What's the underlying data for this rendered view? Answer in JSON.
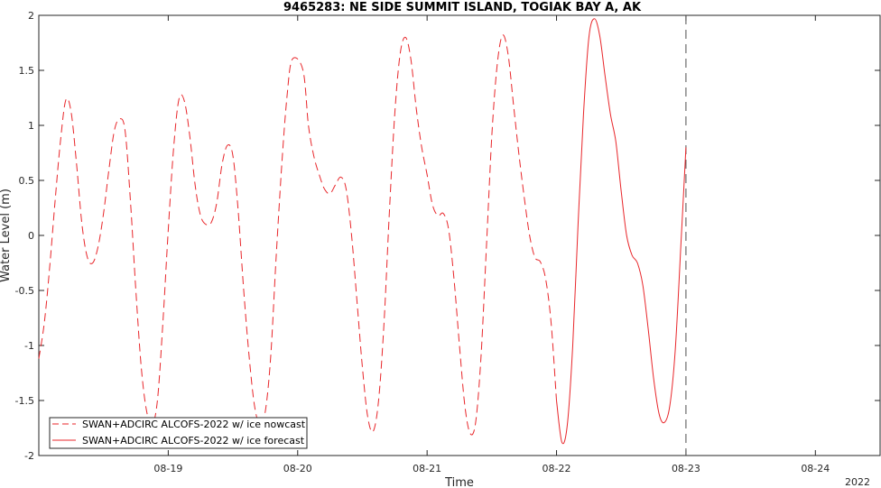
{
  "chart_data": {
    "type": "line",
    "title": "9465283: NE SIDE SUMMIT ISLAND, TOGIAK BAY A, AK",
    "xlabel": "Time",
    "ylabel": "Water Level (m)",
    "year_label": "2022",
    "xlim": [
      "2022-08-18 00:00",
      "2022-08-24 12:00"
    ],
    "ylim": [
      -2,
      2
    ],
    "x_ticks": [
      {
        "x": "2022-08-19 00:00",
        "label": "08-19"
      },
      {
        "x": "2022-08-20 00:00",
        "label": "08-20"
      },
      {
        "x": "2022-08-21 00:00",
        "label": "08-21"
      },
      {
        "x": "2022-08-22 00:00",
        "label": "08-22"
      },
      {
        "x": "2022-08-23 00:00",
        "label": "08-23"
      },
      {
        "x": "2022-08-24 00:00",
        "label": "08-24"
      }
    ],
    "y_ticks": [
      -2,
      -1.5,
      -1,
      -0.5,
      0,
      0.5,
      1,
      1.5,
      2
    ],
    "y_tick_labels": [
      "-2",
      "-1.5",
      "-1",
      "-0.5",
      "0",
      "0.5",
      "1",
      "1.5",
      "2"
    ],
    "nowcast_end": "2022-08-23 00:00",
    "grid": false,
    "legend_position": "bottom-left",
    "series": [
      {
        "name": "SWAN+ADCIRC ALCOFS-2022 w/ ice nowcast",
        "style": "dashed",
        "color": "#e8262a",
        "points": [
          [
            "2022-08-18 00:00",
            -1.12
          ],
          [
            "2022-08-18 01:00",
            -0.8
          ],
          [
            "2022-08-18 02:00",
            -0.3
          ],
          [
            "2022-08-18 03:00",
            0.3
          ],
          [
            "2022-08-18 04:00",
            0.85
          ],
          [
            "2022-08-18 05:00",
            1.23
          ],
          [
            "2022-08-18 06:00",
            1.12
          ],
          [
            "2022-08-18 07:00",
            0.65
          ],
          [
            "2022-08-18 08:00",
            0.1
          ],
          [
            "2022-08-18 09:00",
            -0.2
          ],
          [
            "2022-08-18 10:00",
            -0.25
          ],
          [
            "2022-08-18 11:00",
            -0.1
          ],
          [
            "2022-08-18 12:00",
            0.2
          ],
          [
            "2022-08-18 13:00",
            0.6
          ],
          [
            "2022-08-18 14:00",
            0.95
          ],
          [
            "2022-08-18 15:00",
            1.06
          ],
          [
            "2022-08-18 16:00",
            0.95
          ],
          [
            "2022-08-18 17:00",
            0.3
          ],
          [
            "2022-08-18 18:00",
            -0.5
          ],
          [
            "2022-08-18 19:00",
            -1.2
          ],
          [
            "2022-08-18 20:00",
            -1.6
          ],
          [
            "2022-08-18 21:00",
            -1.72
          ],
          [
            "2022-08-18 22:00",
            -1.5
          ],
          [
            "2022-08-18 23:00",
            -0.8
          ],
          [
            "2022-08-19 00:00",
            0.05
          ],
          [
            "2022-08-19 01:00",
            0.8
          ],
          [
            "2022-08-19 02:00",
            1.24
          ],
          [
            "2022-08-19 03:00",
            1.22
          ],
          [
            "2022-08-19 04:00",
            0.9
          ],
          [
            "2022-08-19 05:00",
            0.45
          ],
          [
            "2022-08-19 06:00",
            0.18
          ],
          [
            "2022-08-19 07:00",
            0.1
          ],
          [
            "2022-08-19 08:00",
            0.12
          ],
          [
            "2022-08-19 09:00",
            0.3
          ],
          [
            "2022-08-19 10:00",
            0.65
          ],
          [
            "2022-08-19 11:00",
            0.82
          ],
          [
            "2022-08-19 12:00",
            0.72
          ],
          [
            "2022-08-19 13:00",
            0.2
          ],
          [
            "2022-08-19 14:00",
            -0.5
          ],
          [
            "2022-08-19 15:00",
            -1.1
          ],
          [
            "2022-08-19 16:00",
            -1.55
          ],
          [
            "2022-08-19 17:00",
            -1.72
          ],
          [
            "2022-08-19 18:00",
            -1.6
          ],
          [
            "2022-08-19 19:00",
            -1.1
          ],
          [
            "2022-08-19 20:00",
            -0.2
          ],
          [
            "2022-08-19 21:00",
            0.6
          ],
          [
            "2022-08-19 22:00",
            1.25
          ],
          [
            "2022-08-19 23:00",
            1.6
          ],
          [
            "2022-08-20 01:00",
            1.5
          ],
          [
            "2022-08-20 02:00",
            1.0
          ],
          [
            "2022-08-20 03:00",
            0.72
          ],
          [
            "2022-08-20 04:00",
            0.55
          ],
          [
            "2022-08-20 05:00",
            0.42
          ],
          [
            "2022-08-20 06:00",
            0.38
          ],
          [
            "2022-08-20 07:00",
            0.46
          ],
          [
            "2022-08-20 08:00",
            0.53
          ],
          [
            "2022-08-20 09:00",
            0.42
          ],
          [
            "2022-08-20 10:00",
            0.0
          ],
          [
            "2022-08-20 11:00",
            -0.6
          ],
          [
            "2022-08-20 12:00",
            -1.2
          ],
          [
            "2022-08-20 13:00",
            -1.65
          ],
          [
            "2022-08-20 14:00",
            -1.78
          ],
          [
            "2022-08-20 15:00",
            -1.5
          ],
          [
            "2022-08-20 16:00",
            -0.8
          ],
          [
            "2022-08-20 17:00",
            0.2
          ],
          [
            "2022-08-20 18:00",
            1.1
          ],
          [
            "2022-08-20 19:00",
            1.65
          ],
          [
            "2022-08-20 20:00",
            1.8
          ],
          [
            "2022-08-20 21:00",
            1.6
          ],
          [
            "2022-08-20 22:00",
            1.15
          ],
          [
            "2022-08-20 23:00",
            0.8
          ],
          [
            "2022-08-21 00:00",
            0.55
          ],
          [
            "2022-08-21 01:00",
            0.28
          ],
          [
            "2022-08-21 02:00",
            0.18
          ],
          [
            "2022-08-21 03:00",
            0.2
          ],
          [
            "2022-08-21 04:00",
            0.05
          ],
          [
            "2022-08-21 05:00",
            -0.4
          ],
          [
            "2022-08-21 06:00",
            -1.0
          ],
          [
            "2022-08-21 07:00",
            -1.55
          ],
          [
            "2022-08-21 08:00",
            -1.8
          ],
          [
            "2022-08-21 09:00",
            -1.7
          ],
          [
            "2022-08-21 10:00",
            -1.1
          ],
          [
            "2022-08-21 11:00",
            -0.1
          ],
          [
            "2022-08-21 12:00",
            0.9
          ],
          [
            "2022-08-21 13:00",
            1.55
          ],
          [
            "2022-08-21 14:00",
            1.82
          ],
          [
            "2022-08-21 15:00",
            1.65
          ],
          [
            "2022-08-21 16:00",
            1.2
          ],
          [
            "2022-08-21 17:00",
            0.75
          ],
          [
            "2022-08-21 18:00",
            0.35
          ],
          [
            "2022-08-21 19:00",
            0.0
          ],
          [
            "2022-08-21 20:00",
            -0.2
          ],
          [
            "2022-08-21 21:00",
            -0.24
          ],
          [
            "2022-08-21 22:00",
            -0.4
          ],
          [
            "2022-08-21 23:00",
            -0.8
          ],
          [
            "2022-08-22 00:00",
            -1.5
          ]
        ]
      },
      {
        "name": "SWAN+ADCIRC ALCOFS-2022 w/ ice forecast",
        "style": "solid",
        "color": "#e8262a",
        "points": [
          [
            "2022-08-22 00:00",
            -1.5
          ],
          [
            "2022-08-22 01:00",
            -1.88
          ],
          [
            "2022-08-22 02:00",
            -1.72
          ],
          [
            "2022-08-22 03:00",
            -1.0
          ],
          [
            "2022-08-22 04:00",
            0.1
          ],
          [
            "2022-08-22 05:00",
            1.1
          ],
          [
            "2022-08-22 06:00",
            1.8
          ],
          [
            "2022-08-22 07:00",
            1.97
          ],
          [
            "2022-08-22 08:00",
            1.82
          ],
          [
            "2022-08-22 09:00",
            1.45
          ],
          [
            "2022-08-22 10:00",
            1.1
          ],
          [
            "2022-08-22 11:00",
            0.85
          ],
          [
            "2022-08-22 12:00",
            0.4
          ],
          [
            "2022-08-22 13:00",
            0.0
          ],
          [
            "2022-08-22 14:00",
            -0.18
          ],
          [
            "2022-08-22 15:00",
            -0.25
          ],
          [
            "2022-08-22 16:00",
            -0.45
          ],
          [
            "2022-08-22 17:00",
            -0.85
          ],
          [
            "2022-08-22 18:00",
            -1.3
          ],
          [
            "2022-08-22 19:00",
            -1.62
          ],
          [
            "2022-08-22 20:00",
            -1.7
          ],
          [
            "2022-08-22 21:00",
            -1.55
          ],
          [
            "2022-08-22 22:00",
            -1.05
          ],
          [
            "2022-08-22 23:00",
            -0.15
          ],
          [
            "2022-08-23 00:00",
            0.8
          ]
        ]
      }
    ]
  }
}
